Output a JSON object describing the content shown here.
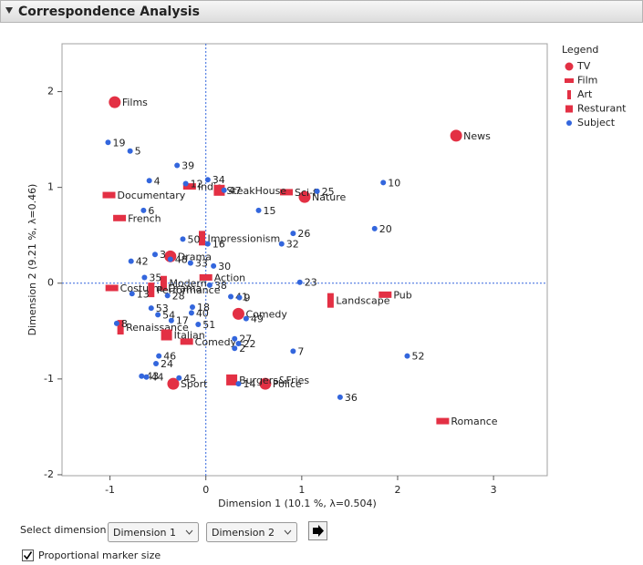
{
  "header": {
    "title": "Correspondence Analysis"
  },
  "chart_data": {
    "type": "scatter",
    "xlabel": "Dimension 1  (10.1 %, λ=0.504)",
    "ylabel": "Dimension 2  (9.21 %, λ=0.46)",
    "xlim": [
      -1.5,
      3.56
    ],
    "ylim": [
      -2.01,
      2.5
    ],
    "xticks": [
      -1,
      0,
      1,
      2,
      3
    ],
    "yticks": [
      -2,
      -1,
      0,
      1,
      2
    ],
    "reference_lines": {
      "x": 0,
      "y": 0
    },
    "legend_title": "Legend",
    "legend": "right",
    "series": [
      {
        "name": "TV",
        "color": "#e33044",
        "marker": "circle",
        "labels": [
          "Films",
          "News",
          "Nature",
          "Drama",
          "Comedy",
          "Sport",
          "Police"
        ],
        "x": [
          -0.95,
          2.61,
          1.03,
          -0.37,
          0.34,
          -0.34,
          0.62
        ],
        "y": [
          1.89,
          1.54,
          0.9,
          0.28,
          -0.32,
          -1.05,
          -1.05
        ]
      },
      {
        "name": "Film",
        "color": "#e33044",
        "marker": "hbar",
        "labels": [
          "Documentary",
          "French",
          "Costume Drama",
          "Romance",
          "Pub",
          "Sci-fi",
          "Action",
          "Comedy",
          "Indie"
        ],
        "x": [
          -1.01,
          -0.9,
          -0.98,
          2.47,
          1.87,
          0.84,
          0.0,
          -0.2,
          -0.17
        ],
        "y": [
          0.92,
          0.68,
          -0.05,
          -1.44,
          -0.12,
          0.95,
          0.06,
          -0.61,
          1.01
        ]
      },
      {
        "name": "Art",
        "color": "#e33044",
        "marker": "vbar",
        "labels": [
          "Impressionism",
          "Landscape",
          "Modern",
          "Renaissance",
          "Performance"
        ],
        "x": [
          -0.04,
          1.3,
          -0.44,
          -0.89,
          -0.57
        ],
        "y": [
          0.47,
          -0.18,
          0.0,
          -0.46,
          -0.07
        ]
      },
      {
        "name": "Resturant",
        "color": "#e33044",
        "marker": "square",
        "labels": [
          "SteakHouse",
          "Burgers&Fries",
          "Italian"
        ],
        "x": [
          0.14,
          0.27,
          -0.41
        ],
        "y": [
          0.97,
          -1.01,
          -0.54
        ]
      },
      {
        "name": "Subject",
        "color": "#3366dd",
        "marker": "dot",
        "labels": [
          "19",
          "5",
          "39",
          "4",
          "12",
          "34",
          "47",
          "25",
          "10",
          "6",
          "15",
          "20",
          "26",
          "32",
          "50",
          "16",
          "3",
          "42",
          "48",
          "33",
          "30",
          "35",
          "23",
          "13",
          "38",
          "28",
          "41",
          "9",
          "53",
          "54",
          "18",
          "40",
          "17",
          "49",
          "51",
          "8",
          "27",
          "2",
          "22",
          "7",
          "52",
          "46",
          "24",
          "43",
          "44",
          "45",
          "14",
          "36"
        ],
        "x": [
          -1.02,
          -0.79,
          -0.3,
          -0.59,
          -0.21,
          0.02,
          0.19,
          1.16,
          1.85,
          -0.65,
          0.55,
          1.76,
          0.91,
          0.79,
          -0.24,
          0.02,
          -0.53,
          -0.78,
          -0.37,
          -0.16,
          0.08,
          -0.64,
          0.98,
          -0.77,
          0.04,
          -0.4,
          0.26,
          0.35,
          -0.57,
          -0.5,
          -0.14,
          -0.15,
          -0.36,
          0.42,
          -0.08,
          -0.93,
          0.3,
          0.3,
          0.34,
          0.91,
          2.1,
          -0.49,
          -0.52,
          -0.67,
          -0.62,
          -0.28,
          0.34,
          1.4
        ],
        "y": [
          1.47,
          1.38,
          1.23,
          1.07,
          1.04,
          1.08,
          0.97,
          0.96,
          1.05,
          0.76,
          0.76,
          0.57,
          0.52,
          0.41,
          0.46,
          0.41,
          0.3,
          0.23,
          0.25,
          0.21,
          0.18,
          0.06,
          0.01,
          -0.11,
          -0.02,
          -0.13,
          -0.14,
          -0.15,
          -0.26,
          -0.33,
          -0.25,
          -0.31,
          -0.39,
          -0.37,
          -0.43,
          -0.42,
          -0.58,
          -0.68,
          -0.63,
          -0.71,
          -0.76,
          -0.76,
          -0.84,
          -0.97,
          -0.98,
          -0.99,
          -1.05,
          -1.19
        ]
      }
    ]
  },
  "controls": {
    "select_label": "Select dimension",
    "dropdowns": [
      "Dimension 1",
      "Dimension 2"
    ],
    "checkbox": "Proportional marker size",
    "checked": true
  }
}
